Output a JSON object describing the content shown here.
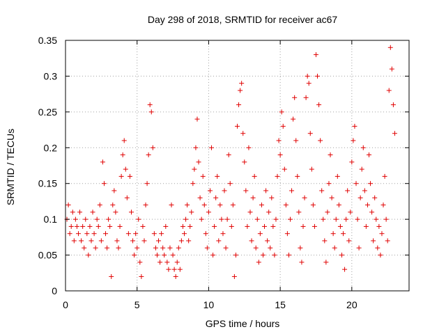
{
  "chart_data": {
    "type": "scatter",
    "title": "Day 298 of 2018, SRMTID for receiver ac67",
    "xlabel": "GPS time / hours",
    "ylabel": "SRMTID / TECUs",
    "xlim": [
      0,
      24
    ],
    "ylim": [
      0,
      0.35
    ],
    "xticks": [
      0,
      5,
      10,
      15,
      20
    ],
    "xtick_labels": [
      "0",
      "5",
      "10",
      "15",
      "20"
    ],
    "yticks": [
      0,
      0.05,
      0.1,
      0.15,
      0.2,
      0.25,
      0.3,
      0.35
    ],
    "ytick_labels": [
      "0",
      "0.05",
      "0.1",
      "0.15",
      "0.2",
      "0.25",
      "0.3",
      "0.35"
    ],
    "grid": true,
    "marker": "plus",
    "color": "#e00000",
    "series": [
      {
        "name": "SRMTID",
        "points": [
          [
            0.1,
            0.1
          ],
          [
            0.2,
            0.12
          ],
          [
            0.3,
            0.08
          ],
          [
            0.4,
            0.09
          ],
          [
            0.5,
            0.11
          ],
          [
            0.6,
            0.07
          ],
          [
            0.7,
            0.1
          ],
          [
            0.8,
            0.09
          ],
          [
            0.9,
            0.08
          ],
          [
            1.0,
            0.11
          ],
          [
            1.1,
            0.07
          ],
          [
            1.2,
            0.09
          ],
          [
            1.3,
            0.06
          ],
          [
            1.4,
            0.1
          ],
          [
            1.5,
            0.08
          ],
          [
            1.6,
            0.05
          ],
          [
            1.7,
            0.09
          ],
          [
            1.8,
            0.07
          ],
          [
            1.9,
            0.11
          ],
          [
            2.0,
            0.08
          ],
          [
            2.1,
            0.06
          ],
          [
            2.2,
            0.1
          ],
          [
            2.3,
            0.09
          ],
          [
            2.4,
            0.12
          ],
          [
            2.5,
            0.07
          ],
          [
            2.6,
            0.18
          ],
          [
            2.7,
            0.15
          ],
          [
            2.8,
            0.08
          ],
          [
            2.9,
            0.06
          ],
          [
            3.0,
            0.1
          ],
          [
            3.1,
            0.09
          ],
          [
            3.2,
            0.02
          ],
          [
            3.3,
            0.12
          ],
          [
            3.4,
            0.14
          ],
          [
            3.5,
            0.11
          ],
          [
            3.6,
            0.07
          ],
          [
            3.7,
            0.06
          ],
          [
            3.8,
            0.09
          ],
          [
            3.9,
            0.16
          ],
          [
            4.0,
            0.19
          ],
          [
            4.1,
            0.21
          ],
          [
            4.2,
            0.17
          ],
          [
            4.3,
            0.13
          ],
          [
            4.4,
            0.08
          ],
          [
            4.5,
            0.16
          ],
          [
            4.6,
            0.11
          ],
          [
            4.7,
            0.07
          ],
          [
            4.8,
            0.05
          ],
          [
            4.9,
            0.08
          ],
          [
            5.0,
            0.06
          ],
          [
            5.1,
            0.1
          ],
          [
            5.2,
            0.04
          ],
          [
            5.3,
            0.02
          ],
          [
            5.4,
            0.09
          ],
          [
            5.5,
            0.07
          ],
          [
            5.6,
            0.12
          ],
          [
            5.7,
            0.15
          ],
          [
            5.8,
            0.19
          ],
          [
            5.9,
            0.26
          ],
          [
            6.0,
            0.25
          ],
          [
            6.1,
            0.2
          ],
          [
            6.2,
            0.08
          ],
          [
            6.3,
            0.06
          ],
          [
            6.4,
            0.05
          ],
          [
            6.5,
            0.07
          ],
          [
            6.6,
            0.04
          ],
          [
            6.7,
            0.08
          ],
          [
            6.8,
            0.06
          ],
          [
            6.9,
            0.05
          ],
          [
            7.0,
            0.09
          ],
          [
            7.1,
            0.04
          ],
          [
            7.2,
            0.03
          ],
          [
            7.3,
            0.06
          ],
          [
            7.4,
            0.12
          ],
          [
            7.5,
            0.05
          ],
          [
            7.6,
            0.03
          ],
          [
            7.7,
            0.02
          ],
          [
            7.8,
            0.04
          ],
          [
            7.9,
            0.06
          ],
          [
            8.0,
            0.03
          ],
          [
            8.1,
            0.07
          ],
          [
            8.2,
            0.09
          ],
          [
            8.3,
            0.08
          ],
          [
            8.4,
            0.1
          ],
          [
            8.5,
            0.12
          ],
          [
            8.6,
            0.07
          ],
          [
            8.7,
            0.09
          ],
          [
            8.8,
            0.11
          ],
          [
            8.9,
            0.15
          ],
          [
            9.0,
            0.17
          ],
          [
            9.1,
            0.2
          ],
          [
            9.2,
            0.24
          ],
          [
            9.3,
            0.18
          ],
          [
            9.4,
            0.13
          ],
          [
            9.5,
            0.1
          ],
          [
            9.6,
            0.16
          ],
          [
            9.7,
            0.12
          ],
          [
            9.8,
            0.08
          ],
          [
            9.9,
            0.06
          ],
          [
            10.0,
            0.11
          ],
          [
            10.1,
            0.14
          ],
          [
            10.2,
            0.2
          ],
          [
            10.3,
            0.05
          ],
          [
            10.4,
            0.09
          ],
          [
            10.5,
            0.13
          ],
          [
            10.6,
            0.16
          ],
          [
            10.7,
            0.07
          ],
          [
            10.8,
            0.12
          ],
          [
            10.9,
            0.1
          ],
          [
            11.0,
            0.08
          ],
          [
            11.1,
            0.14
          ],
          [
            11.2,
            0.06
          ],
          [
            11.3,
            0.1
          ],
          [
            11.4,
            0.19
          ],
          [
            11.5,
            0.15
          ],
          [
            11.6,
            0.09
          ],
          [
            11.7,
            0.12
          ],
          [
            11.8,
            0.02
          ],
          [
            11.9,
            0.05
          ],
          [
            12.0,
            0.23
          ],
          [
            12.1,
            0.26
          ],
          [
            12.2,
            0.28
          ],
          [
            12.3,
            0.29
          ],
          [
            12.4,
            0.22
          ],
          [
            12.5,
            0.18
          ],
          [
            12.6,
            0.14
          ],
          [
            12.7,
            0.09
          ],
          [
            12.8,
            0.2
          ],
          [
            12.9,
            0.11
          ],
          [
            13.0,
            0.07
          ],
          [
            13.1,
            0.13
          ],
          [
            13.2,
            0.16
          ],
          [
            13.3,
            0.06
          ],
          [
            13.4,
            0.1
          ],
          [
            13.5,
            0.04
          ],
          [
            13.6,
            0.08
          ],
          [
            13.7,
            0.12
          ],
          [
            13.8,
            0.05
          ],
          [
            13.9,
            0.09
          ],
          [
            14.0,
            0.14
          ],
          [
            14.1,
            0.07
          ],
          [
            14.2,
            0.11
          ],
          [
            14.3,
            0.06
          ],
          [
            14.4,
            0.13
          ],
          [
            14.5,
            0.09
          ],
          [
            14.6,
            0.05
          ],
          [
            14.7,
            0.1
          ],
          [
            14.8,
            0.16
          ],
          [
            14.9,
            0.21
          ],
          [
            15.0,
            0.19
          ],
          [
            15.1,
            0.25
          ],
          [
            15.2,
            0.23
          ],
          [
            15.3,
            0.17
          ],
          [
            15.4,
            0.12
          ],
          [
            15.5,
            0.08
          ],
          [
            15.6,
            0.05
          ],
          [
            15.7,
            0.1
          ],
          [
            15.8,
            0.14
          ],
          [
            15.9,
            0.24
          ],
          [
            16.0,
            0.27
          ],
          [
            16.1,
            0.21
          ],
          [
            16.2,
            0.16
          ],
          [
            16.3,
            0.11
          ],
          [
            16.4,
            0.06
          ],
          [
            16.5,
            0.04
          ],
          [
            16.6,
            0.09
          ],
          [
            16.7,
            0.13
          ],
          [
            16.8,
            0.27
          ],
          [
            16.9,
            0.3
          ],
          [
            17.0,
            0.29
          ],
          [
            17.1,
            0.22
          ],
          [
            17.2,
            0.17
          ],
          [
            17.3,
            0.12
          ],
          [
            17.4,
            0.09
          ],
          [
            17.5,
            0.33
          ],
          [
            17.6,
            0.3
          ],
          [
            17.7,
            0.26
          ],
          [
            17.8,
            0.21
          ],
          [
            17.9,
            0.14
          ],
          [
            18.0,
            0.1
          ],
          [
            18.1,
            0.07
          ],
          [
            18.2,
            0.04
          ],
          [
            18.3,
            0.11
          ],
          [
            18.4,
            0.15
          ],
          [
            18.5,
            0.19
          ],
          [
            18.6,
            0.13
          ],
          [
            18.7,
            0.08
          ],
          [
            18.8,
            0.06
          ],
          [
            18.9,
            0.1
          ],
          [
            19.0,
            0.16
          ],
          [
            19.1,
            0.12
          ],
          [
            19.2,
            0.09
          ],
          [
            19.3,
            0.05
          ],
          [
            19.4,
            0.08
          ],
          [
            19.5,
            0.03
          ],
          [
            19.6,
            0.1
          ],
          [
            19.7,
            0.14
          ],
          [
            19.8,
            0.07
          ],
          [
            19.9,
            0.11
          ],
          [
            20.0,
            0.18
          ],
          [
            20.1,
            0.21
          ],
          [
            20.2,
            0.23
          ],
          [
            20.3,
            0.15
          ],
          [
            20.4,
            0.1
          ],
          [
            20.5,
            0.06
          ],
          [
            20.6,
            0.13
          ],
          [
            20.7,
            0.17
          ],
          [
            20.8,
            0.2
          ],
          [
            20.9,
            0.14
          ],
          [
            21.0,
            0.09
          ],
          [
            21.1,
            0.12
          ],
          [
            21.2,
            0.19
          ],
          [
            21.3,
            0.15
          ],
          [
            21.4,
            0.11
          ],
          [
            21.5,
            0.07
          ],
          [
            21.6,
            0.13
          ],
          [
            21.7,
            0.1
          ],
          [
            21.8,
            0.06
          ],
          [
            21.9,
            0.09
          ],
          [
            22.0,
            0.05
          ],
          [
            22.1,
            0.08
          ],
          [
            22.2,
            0.12
          ],
          [
            22.3,
            0.16
          ],
          [
            22.4,
            0.1
          ],
          [
            22.5,
            0.07
          ],
          [
            22.6,
            0.28
          ],
          [
            22.7,
            0.34
          ],
          [
            22.8,
            0.31
          ],
          [
            22.9,
            0.26
          ],
          [
            23.0,
            0.22
          ]
        ]
      }
    ]
  }
}
